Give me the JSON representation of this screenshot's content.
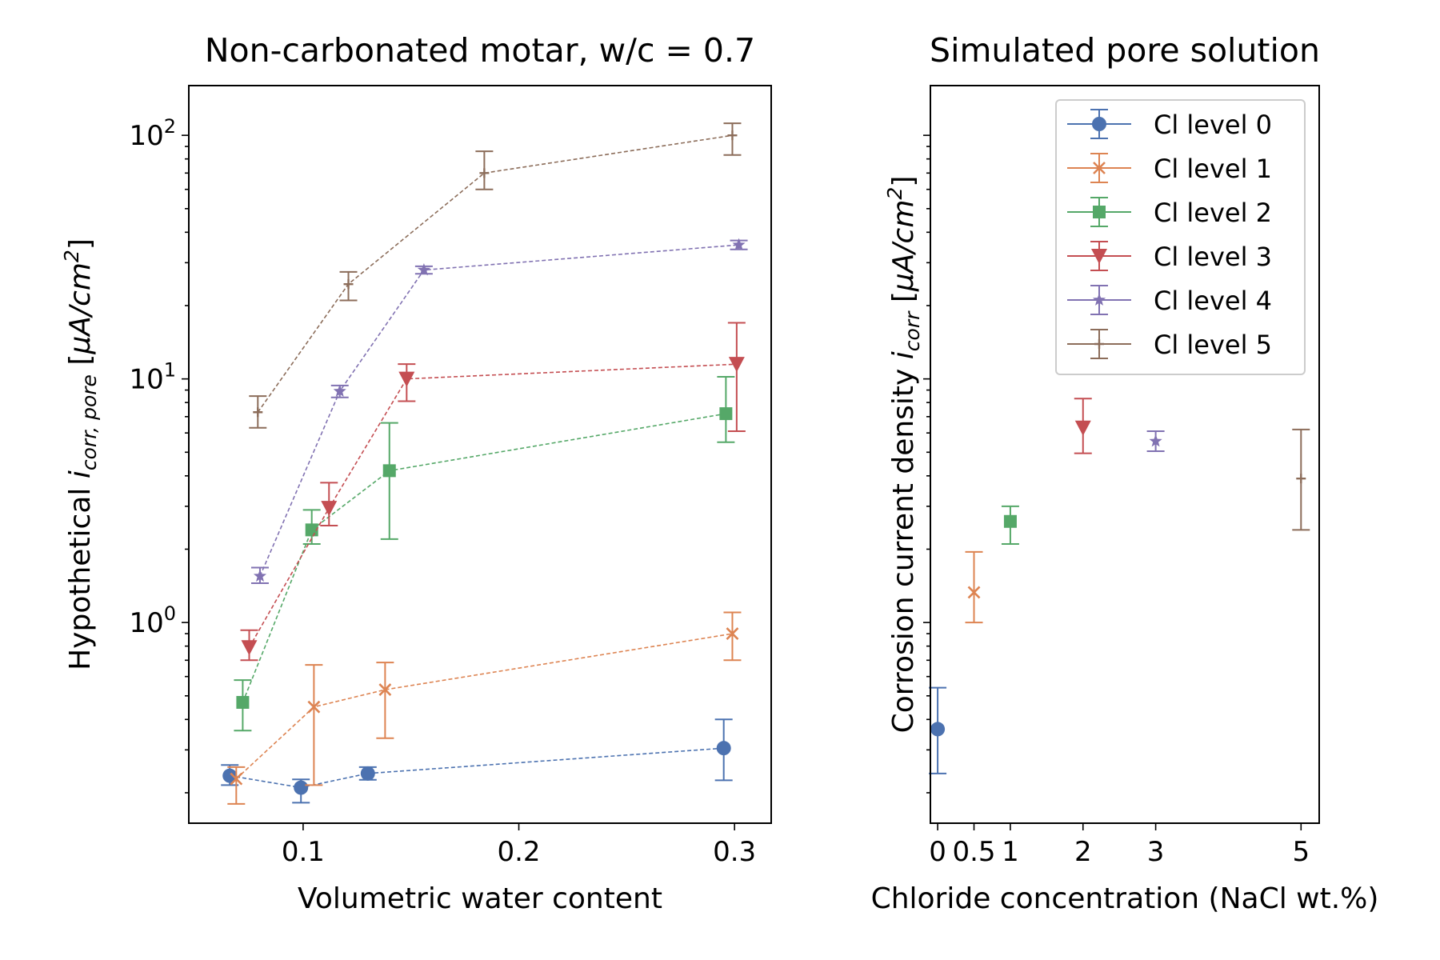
{
  "chart_data": [
    {
      "type": "line",
      "title": "Non-carbonated motar, w/c = 0.7",
      "xlabel": "Volumetric water content",
      "ylabel_prefix": "Hypothetical ",
      "ylabel_var": "i",
      "ylabel_sub": "corr, pore",
      "ylabel_unit_open": " [",
      "ylabel_unit_mu": "μA/cm",
      "ylabel_unit_sup": "2",
      "ylabel_unit_close": "]",
      "xlim": [
        0.047,
        0.317
      ],
      "ylim": [
        0.15,
        160
      ],
      "yscale": "log",
      "xticks": [
        0.1,
        0.2,
        0.3
      ],
      "xtick_labels": [
        "0.1",
        "0.2",
        "0.3"
      ],
      "yticks": [
        1,
        10,
        100
      ],
      "ytick_labels": [
        {
          "base": "10",
          "exp": "0"
        },
        {
          "base": "10",
          "exp": "1"
        },
        {
          "base": "10",
          "exp": "2"
        }
      ],
      "grid": false,
      "series": [
        {
          "name": "Cl level 0",
          "color": "#4c72b0",
          "marker": "circle",
          "points": [
            {
              "x": 0.066,
              "y": 0.235,
              "lo": 0.215,
              "hi": 0.26
            },
            {
              "x": 0.099,
              "y": 0.21,
              "lo": 0.182,
              "hi": 0.227
            },
            {
              "x": 0.13,
              "y": 0.24,
              "lo": 0.226,
              "hi": 0.255
            },
            {
              "x": 0.295,
              "y": 0.305,
              "lo": 0.225,
              "hi": 0.4
            }
          ]
        },
        {
          "name": "Cl level 1",
          "color": "#dd8452",
          "marker": "x",
          "points": [
            {
              "x": 0.069,
              "y": 0.228,
              "lo": 0.18,
              "hi": 0.255
            },
            {
              "x": 0.105,
              "y": 0.45,
              "lo": 0.215,
              "hi": 0.67
            },
            {
              "x": 0.138,
              "y": 0.53,
              "lo": 0.335,
              "hi": 0.685
            },
            {
              "x": 0.299,
              "y": 0.9,
              "lo": 0.7,
              "hi": 1.1
            }
          ]
        },
        {
          "name": "Cl level 2",
          "color": "#55a868",
          "marker": "square",
          "points": [
            {
              "x": 0.072,
              "y": 0.47,
              "lo": 0.36,
              "hi": 0.58
            },
            {
              "x": 0.104,
              "y": 2.4,
              "lo": 2.1,
              "hi": 2.9
            },
            {
              "x": 0.14,
              "y": 4.2,
              "lo": 2.2,
              "hi": 6.6
            },
            {
              "x": 0.296,
              "y": 7.2,
              "lo": 5.5,
              "hi": 10.2
            }
          ]
        },
        {
          "name": "Cl level 3",
          "color": "#c44e52",
          "marker": "triangle-down",
          "points": [
            {
              "x": 0.075,
              "y": 0.79,
              "lo": 0.7,
              "hi": 0.93
            },
            {
              "x": 0.112,
              "y": 2.95,
              "lo": 2.5,
              "hi": 3.75
            },
            {
              "x": 0.148,
              "y": 10.0,
              "lo": 8.1,
              "hi": 11.5
            },
            {
              "x": 0.301,
              "y": 11.5,
              "lo": 6.1,
              "hi": 17.0
            }
          ]
        },
        {
          "name": "Cl level 4",
          "color": "#8172b2",
          "marker": "star",
          "points": [
            {
              "x": 0.08,
              "y": 1.55,
              "lo": 1.45,
              "hi": 1.68
            },
            {
              "x": 0.117,
              "y": 8.9,
              "lo": 8.4,
              "hi": 9.4
            },
            {
              "x": 0.156,
              "y": 28.0,
              "lo": 27.0,
              "hi": 29.0
            },
            {
              "x": 0.302,
              "y": 35.5,
              "lo": 34.0,
              "hi": 37.0
            }
          ]
        },
        {
          "name": "Cl level 5",
          "color": "#8c6d5a",
          "marker": "plus",
          "points": [
            {
              "x": 0.079,
              "y": 7.3,
              "lo": 6.3,
              "hi": 8.5
            },
            {
              "x": 0.121,
              "y": 24.5,
              "lo": 21.0,
              "hi": 27.5
            },
            {
              "x": 0.184,
              "y": 70.0,
              "lo": 60.0,
              "hi": 86.0
            },
            {
              "x": 0.299,
              "y": 100.0,
              "lo": 83.0,
              "hi": 112.0
            }
          ]
        }
      ]
    },
    {
      "type": "scatter",
      "title": "Simulated pore solution",
      "xlabel": "Chloride concentration (NaCl wt.%)",
      "ylabel_prefix": "Corrosion current density ",
      "ylabel_var": "i",
      "ylabel_sub": "corr",
      "ylabel_unit_open": " [",
      "ylabel_unit_mu": "μA/cm",
      "ylabel_unit_sup": "2",
      "ylabel_unit_close": "]",
      "xlim": [
        -0.1,
        5.25
      ],
      "ylim": [
        0.15,
        160
      ],
      "yscale": "log",
      "ytick_labels_shown": false,
      "xticks": [
        0,
        0.5,
        1,
        2,
        3,
        5
      ],
      "xtick_labels": [
        "0",
        "0.5",
        "1",
        "2",
        "3",
        "5"
      ],
      "legend_position": "upper right",
      "grid": false,
      "series": [
        {
          "name": "Cl level 0",
          "color": "#4c72b0",
          "marker": "circle",
          "points": [
            {
              "x": 0,
              "y": 0.365,
              "lo": 0.24,
              "hi": 0.54
            }
          ]
        },
        {
          "name": "Cl level 1",
          "color": "#dd8452",
          "marker": "x",
          "points": [
            {
              "x": 0.5,
              "y": 1.33,
              "lo": 1.0,
              "hi": 1.95
            }
          ]
        },
        {
          "name": "Cl level 2",
          "color": "#55a868",
          "marker": "square",
          "points": [
            {
              "x": 1,
              "y": 2.6,
              "lo": 2.1,
              "hi": 3.0
            }
          ]
        },
        {
          "name": "Cl level 3",
          "color": "#c44e52",
          "marker": "triangle-down",
          "points": [
            {
              "x": 2,
              "y": 6.3,
              "lo": 4.95,
              "hi": 8.3
            }
          ]
        },
        {
          "name": "Cl level 4",
          "color": "#8172b2",
          "marker": "star",
          "points": [
            {
              "x": 3,
              "y": 5.55,
              "lo": 5.05,
              "hi": 6.1
            }
          ]
        },
        {
          "name": "Cl level 5",
          "color": "#8c6d5a",
          "marker": "plus",
          "points": [
            {
              "x": 5,
              "y": 3.9,
              "lo": 2.4,
              "hi": 6.2
            }
          ]
        }
      ]
    }
  ]
}
